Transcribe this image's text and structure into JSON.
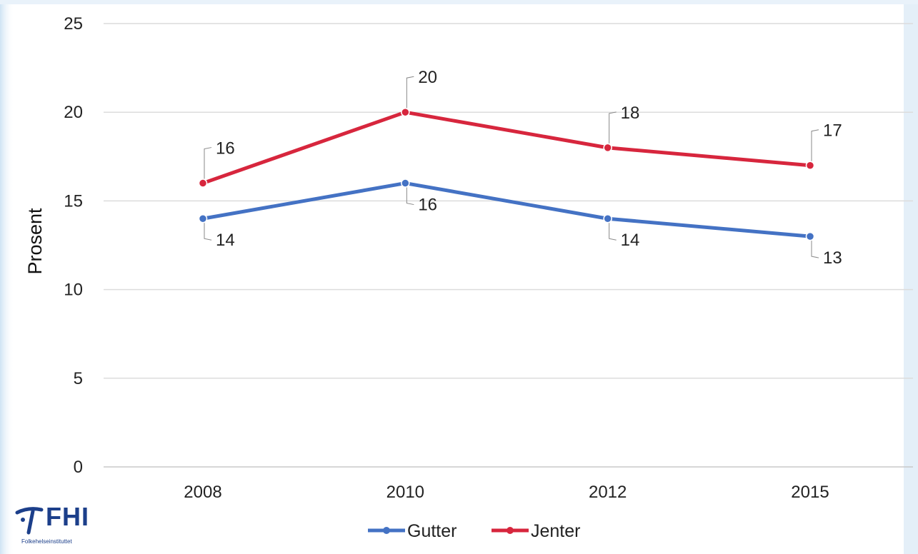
{
  "chart_data": {
    "type": "line",
    "categories": [
      "2008",
      "2010",
      "2012",
      "2015"
    ],
    "series": [
      {
        "name": "Gutter",
        "values": [
          14,
          16,
          14,
          13
        ],
        "color": "#4472c4"
      },
      {
        "name": "Jenter",
        "values": [
          16,
          20,
          18,
          17
        ],
        "color": "#d7263d"
      }
    ],
    "ylabel": "Prosent",
    "ylim": [
      0,
      25
    ],
    "yticks": [
      0,
      5,
      10,
      15,
      20,
      25
    ],
    "grid": true,
    "legend_position": "bottom"
  },
  "logo": {
    "text": "FHI",
    "subtitle": "Folkehelseinstituttet"
  }
}
